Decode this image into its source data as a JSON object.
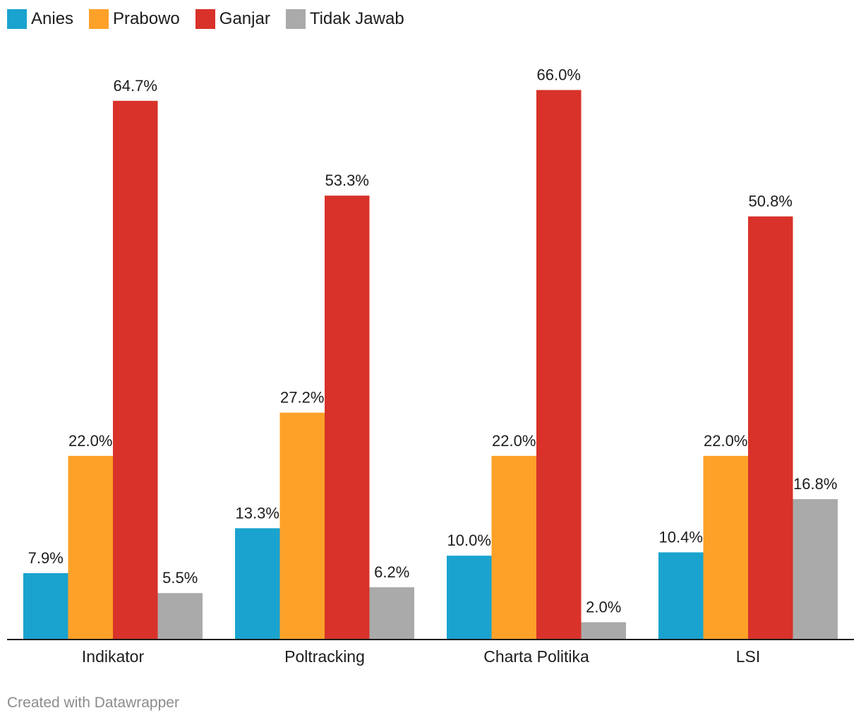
{
  "colors": {
    "Anies": "#1aa3cf",
    "Prabowo": "#fea128",
    "Ganjar": "#d8322a",
    "Tidak Jawab": "#aaaaaa",
    "axis": "#1d1d1d",
    "footer": "#8c8c8c"
  },
  "legend": [
    {
      "label": "Anies",
      "color": "#1aa3cf"
    },
    {
      "label": "Prabowo",
      "color": "#fea128"
    },
    {
      "label": "Ganjar",
      "color": "#d8322a"
    },
    {
      "label": "Tidak Jawab",
      "color": "#aaaaaa"
    }
  ],
  "footer": "Created with Datawrapper",
  "chart_data": {
    "type": "bar",
    "grouped": true,
    "legend_position": "top-left",
    "grid": false,
    "ylim": [
      0,
      70
    ],
    "value_suffix": "%",
    "categories": [
      "Indikator",
      "Poltracking",
      "Charta Politika",
      "LSI"
    ],
    "series": [
      {
        "name": "Anies",
        "values": [
          7.9,
          13.3,
          10.0,
          10.4
        ],
        "labels": [
          "7.9%",
          "13.3%",
          "10.0%",
          "10.4%"
        ]
      },
      {
        "name": "Prabowo",
        "values": [
          22.0,
          27.2,
          22.0,
          22.0
        ],
        "labels": [
          "22.0%",
          "27.2%",
          "22.0%",
          "22.0%"
        ]
      },
      {
        "name": "Ganjar",
        "values": [
          64.7,
          53.3,
          66.0,
          50.8
        ],
        "labels": [
          "64.7%",
          "53.3%",
          "66.0%",
          "50.8%"
        ]
      },
      {
        "name": "Tidak Jawab",
        "values": [
          5.5,
          6.2,
          2.0,
          16.8
        ],
        "labels": [
          "5.5%",
          "6.2%",
          "2.0%",
          "16.8%"
        ]
      }
    ]
  }
}
